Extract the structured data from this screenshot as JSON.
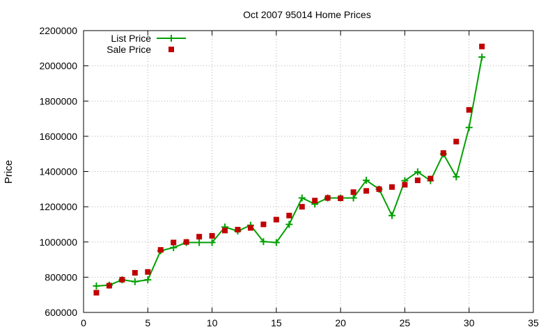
{
  "chart_data": {
    "type": "line",
    "title": "Oct 2007 95014 Home Prices",
    "xlabel": "",
    "ylabel": "Price",
    "xlim": [
      0,
      35
    ],
    "ylim": [
      600000,
      2200000
    ],
    "x_ticks": [
      0,
      5,
      10,
      15,
      20,
      25,
      30,
      35
    ],
    "y_ticks": [
      600000,
      800000,
      1000000,
      1200000,
      1400000,
      1600000,
      1800000,
      2000000,
      2200000
    ],
    "grid": true,
    "legend_position": "top-left",
    "series": [
      {
        "name": "List Price",
        "style": "line+cross",
        "color": "#00a000",
        "x": [
          1,
          2,
          3,
          4,
          5,
          6,
          7,
          8,
          9,
          10,
          11,
          12,
          13,
          14,
          15,
          16,
          17,
          18,
          19,
          20,
          21,
          22,
          23,
          24,
          25,
          26,
          27,
          28,
          29,
          30,
          31
        ],
        "y": [
          750000,
          755000,
          785000,
          775000,
          785000,
          950000,
          968000,
          997000,
          997000,
          997000,
          1085000,
          1062000,
          1095000,
          1002000,
          997000,
          1100000,
          1250000,
          1215000,
          1250000,
          1250000,
          1250000,
          1350000,
          1300000,
          1150000,
          1348000,
          1398000,
          1348000,
          1500000,
          1370000,
          1650000,
          2050000
        ]
      },
      {
        "name": "Sale Price",
        "style": "square",
        "color": "#c00000",
        "x": [
          1,
          2,
          3,
          4,
          5,
          6,
          7,
          8,
          9,
          10,
          11,
          12,
          13,
          14,
          15,
          16,
          17,
          18,
          19,
          20,
          21,
          22,
          23,
          24,
          25,
          26,
          27,
          28,
          29,
          30,
          31
        ],
        "y": [
          712000,
          752000,
          786000,
          825000,
          830000,
          955000,
          997000,
          1000000,
          1030000,
          1035000,
          1065000,
          1070000,
          1080000,
          1100000,
          1127000,
          1150000,
          1200000,
          1235000,
          1250000,
          1248000,
          1283000,
          1290000,
          1300000,
          1312000,
          1325000,
          1350000,
          1360000,
          1505000,
          1570000,
          1750000,
          2110000
        ]
      }
    ]
  }
}
